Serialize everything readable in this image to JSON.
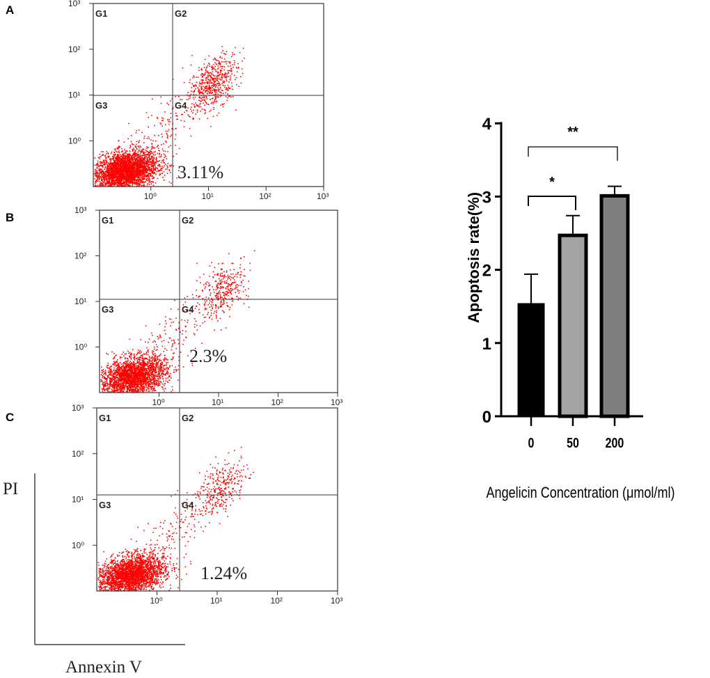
{
  "panels": [
    {
      "label": "A",
      "gates": [
        "G1",
        "G2",
        "G3",
        "G4"
      ],
      "percent_label": "3.11%"
    },
    {
      "label": "B",
      "gates": [
        "G1",
        "G2",
        "G3",
        "G4"
      ],
      "percent_label": "2.3%"
    },
    {
      "label": "C",
      "gates": [
        "G1",
        "G2",
        "G3",
        "G4"
      ],
      "percent_label": "1.24%"
    }
  ],
  "flow_axes": {
    "tick_labels": [
      "10⁰",
      "10¹",
      "10²",
      "10³"
    ],
    "y_label": "PI",
    "x_label": "Annexin V",
    "scale": "log",
    "point_color": "#ff0000"
  },
  "chart_data": [
    {
      "type": "scatter",
      "description_of_axes": "",
      "panels": [
        "A",
        "B",
        "C"
      ],
      "x_scale": "log",
      "y_scale": "log",
      "xlim": [
        0.1,
        1000
      ],
      "ylim": [
        0.1,
        1000
      ],
      "quadrant_gates": [
        "G1",
        "G2",
        "G3",
        "G4"
      ],
      "g4_percent": [
        3.11,
        2.3,
        1.24
      ]
    },
    {
      "type": "bar",
      "categories": [
        "0",
        "50",
        "200"
      ],
      "values": [
        1.54,
        2.47,
        3.01
      ],
      "error_upper": [
        1.94,
        2.74,
        3.14
      ],
      "colors": [
        "#000000",
        "#a3a3a6",
        "#7f7f7f"
      ],
      "ylabel": "Apoptosis rate(%)",
      "xlabel": "Angelicin Concentration (μmol/ml)",
      "ylim": [
        0,
        4
      ],
      "yticks": [
        "0",
        "1",
        "2",
        "3",
        "4"
      ],
      "significance": [
        {
          "from": "0",
          "to": "50",
          "label": "*"
        },
        {
          "from": "0",
          "to": "200",
          "label": "**"
        }
      ],
      "grid": false
    }
  ]
}
